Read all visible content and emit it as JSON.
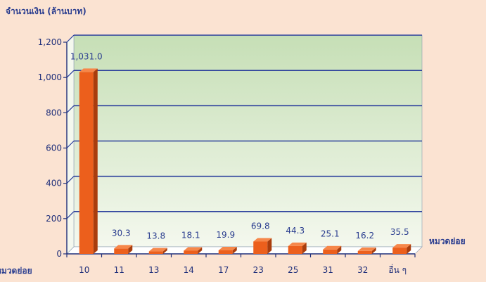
{
  "chart_data": {
    "type": "bar",
    "title": "",
    "ylabel": "จำนวนเงิน (ล้านบาท)",
    "xlabel": "หมวดย่อย",
    "xlabel_left": "หมวดย่อย",
    "categories": [
      "10",
      "11",
      "13",
      "14",
      "17",
      "23",
      "25",
      "31",
      "32",
      "อื่น ๆ"
    ],
    "values": [
      1031.0,
      30.3,
      13.8,
      18.1,
      19.9,
      69.8,
      44.3,
      25.1,
      16.2,
      35.5
    ],
    "value_labels": [
      "1,031.0",
      "30.3",
      "13.8",
      "18.1",
      "19.9",
      "69.8",
      "44.3",
      "25.1",
      "16.2",
      "35.5"
    ],
    "ylim": [
      0,
      1200
    ],
    "yticks": [
      0,
      200,
      400,
      600,
      800,
      1000,
      1200
    ],
    "ytick_labels": [
      "0",
      "200",
      "400",
      "600",
      "800",
      "1,000",
      "1,200"
    ],
    "grid": true,
    "legend": "none",
    "colors": {
      "bar_front": "#ec5f1c",
      "bar_side": "#a93d0d",
      "bar_top": "#f6874a",
      "gridline": "#2b3f9c",
      "axis": "#1f2f7a",
      "wall_top": "#c6dfb6",
      "wall_bottom": "#f4f8ee",
      "floor": "#ffffff",
      "background": "#fbe3d2"
    }
  }
}
